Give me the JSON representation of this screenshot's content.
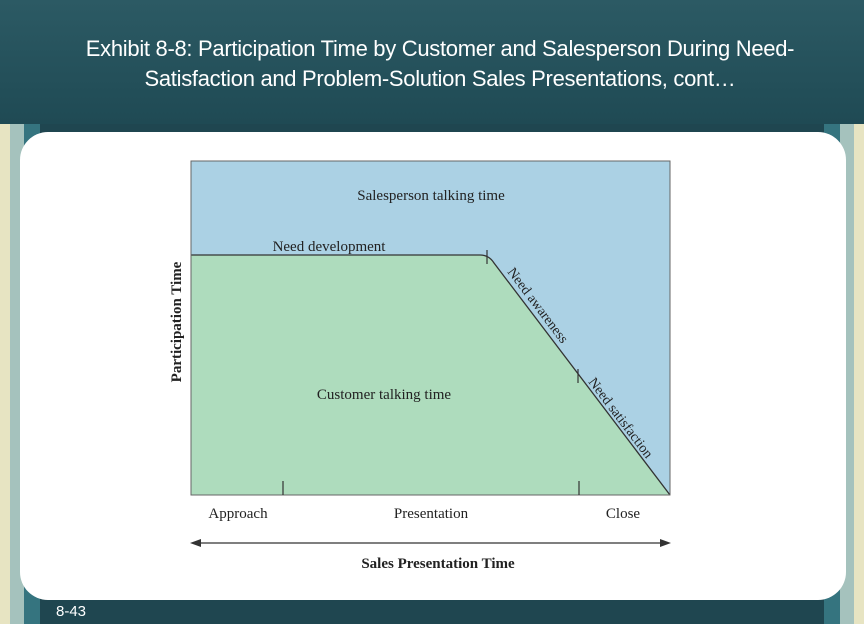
{
  "slide": {
    "title_line1": "Exhibit 8-8: Participation Time by Customer and Salesperson During Need-",
    "title_line2": "Satisfaction and Problem-Solution Sales Presentations, cont…",
    "number": "8-43"
  },
  "diagram": {
    "region_top_label": "Salesperson talking time",
    "region_bottom_label": "Customer talking time",
    "phase_flat": "Need development",
    "phase_slope1": "Need awareness",
    "phase_slope2": "Need satisfaction",
    "y_axis_label": "Participation Time",
    "x_axis_label": "Sales Presentation Time",
    "x_stages": [
      "Approach",
      "Presentation",
      "Close"
    ]
  },
  "colors": {
    "background": "#1f4650",
    "salesperson_area": "#abd1e4",
    "customer_area": "#aedcbd"
  }
}
